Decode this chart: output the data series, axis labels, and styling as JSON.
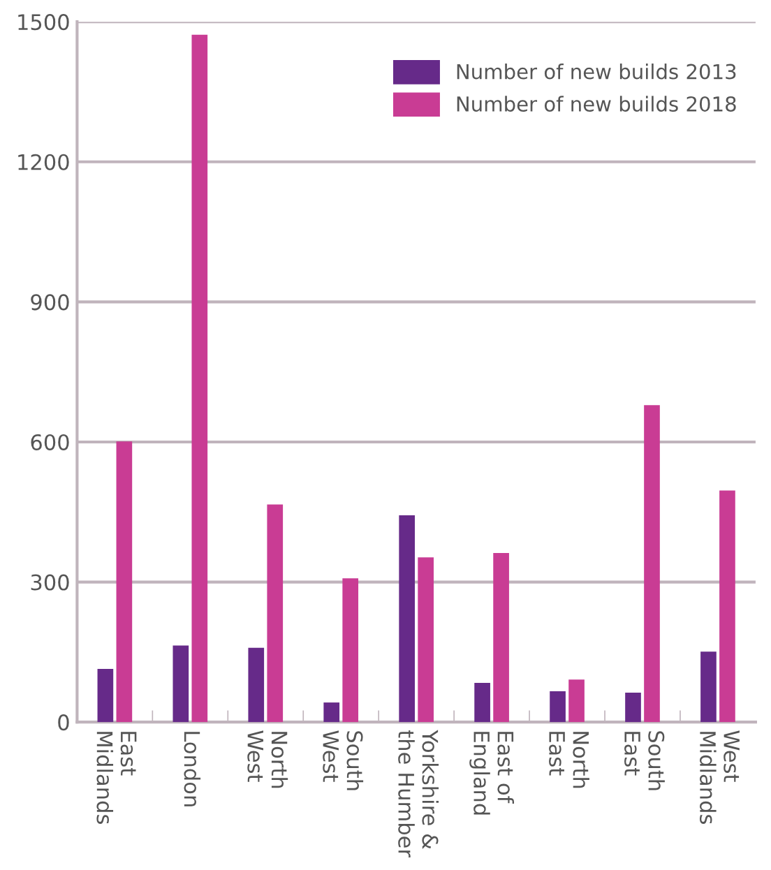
{
  "chart_data": {
    "type": "bar",
    "categories": [
      "East\nMidlands",
      "London",
      "North\nWest",
      "South\nWest",
      "Yorkshire &\nthe Humber",
      "East of\nEngland",
      "North\nEast",
      "South\nEast",
      "West\nMidlands"
    ],
    "series": [
      {
        "name": "Number of new builds 2013",
        "color": "#662a89",
        "values": [
          114,
          164,
          159,
          42,
          443,
          84,
          66,
          63,
          151
        ]
      },
      {
        "name": "Number of new builds 2018",
        "color": "#c93c94",
        "values": [
          601,
          1472,
          466,
          308,
          353,
          362,
          91,
          679,
          496
        ]
      }
    ],
    "ylim": [
      0,
      1500
    ],
    "yticks": [
      0,
      300,
      600,
      900,
      1200,
      1500
    ],
    "grid": "y",
    "legend": "top right"
  }
}
